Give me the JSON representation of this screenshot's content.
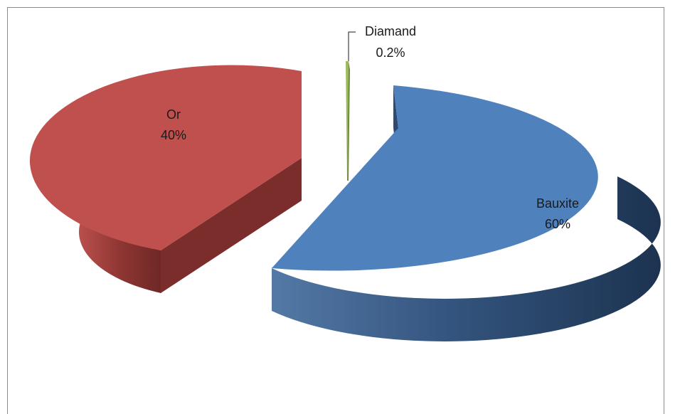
{
  "chart_data": {
    "type": "pie",
    "style": "3d-exploded",
    "title": "",
    "slices": [
      {
        "label": "Bauxite",
        "value": 60,
        "value_label": "60%",
        "color": "#4f81bd"
      },
      {
        "label": "Or",
        "value": 40,
        "value_label": "40%",
        "color": "#c0504d"
      },
      {
        "label": "Diamand",
        "value": 0.2,
        "value_label": "0.2%",
        "color": "#9bbb59"
      }
    ]
  }
}
